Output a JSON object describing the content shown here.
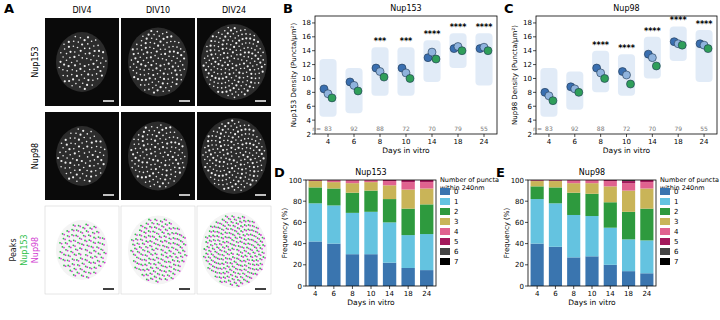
{
  "panels": [
    "A",
    "B",
    "C",
    "D",
    "E"
  ],
  "images": {
    "columns": [
      "DIV4",
      "DIV10",
      "DIV24"
    ],
    "rows": [
      "Nup153",
      "Nup98"
    ],
    "overlay_labels": [
      "Peaks",
      "Nup153",
      "Nup98"
    ],
    "overlay_colors": [
      "#222222",
      "#2fbf4a",
      "#d23fd2"
    ]
  },
  "chart_data": [
    {
      "type": "scatter",
      "title": "Nup153",
      "x_label": "Days in vitro",
      "y_label": "Nup153 Density (Puncta/µm²)",
      "categories": [
        4,
        6,
        8,
        10,
        14,
        18,
        24
      ],
      "ylim": [
        2,
        19
      ],
      "yticks": [
        2,
        4,
        6,
        8,
        10,
        12,
        14,
        16,
        18
      ],
      "grid": false,
      "series": [
        {
          "color": "#3a6fb0",
          "values": [
            8.5,
            9.5,
            11.5,
            11.5,
            13.0,
            14.3,
            14.3
          ]
        },
        {
          "color": "#8fb3dd",
          "values": [
            7.8,
            9.0,
            11.0,
            10.8,
            13.8,
            14.6,
            14.5
          ]
        },
        {
          "color": "#2f9e5a",
          "values": [
            7.2,
            8.2,
            10.2,
            10.0,
            12.8,
            14.0,
            14.0
          ]
        }
      ],
      "ranges": [
        [
          4.5,
          12.8
        ],
        [
          5.0,
          11.5
        ],
        [
          7.5,
          14.5
        ],
        [
          7.5,
          14.5
        ],
        [
          9.5,
          15.5
        ],
        [
          11.5,
          16.5
        ],
        [
          9.0,
          16.5
        ]
      ],
      "n_prefix": "n=",
      "n": [
        83,
        92,
        88,
        72,
        70,
        79,
        55
      ],
      "significance": [
        null,
        null,
        "***",
        "***",
        "****",
        "****",
        "****"
      ]
    },
    {
      "type": "scatter",
      "title": "Nup98",
      "x_label": "Days in vitro",
      "y_label": "Nup98 Density (Puncta/µm²)",
      "categories": [
        4,
        6,
        8,
        10,
        14,
        18,
        24
      ],
      "ylim": [
        2,
        19
      ],
      "yticks": [
        2,
        4,
        6,
        8,
        10,
        12,
        14,
        16,
        18
      ],
      "grid": false,
      "series": [
        {
          "color": "#3a6fb0",
          "values": [
            8.0,
            8.8,
            11.5,
            11.0,
            13.5,
            15.3,
            15.0
          ]
        },
        {
          "color": "#8fb3dd",
          "values": [
            7.5,
            8.5,
            10.8,
            10.5,
            13.0,
            15.0,
            14.8
          ]
        },
        {
          "color": "#2f9e5a",
          "values": [
            6.8,
            8.0,
            10.0,
            9.2,
            11.8,
            14.8,
            14.3
          ]
        }
      ],
      "ranges": [
        [
          4.5,
          11.5
        ],
        [
          5.5,
          11.0
        ],
        [
          8.0,
          14.0
        ],
        [
          7.5,
          13.5
        ],
        [
          10.0,
          16.0
        ],
        [
          12.5,
          17.5
        ],
        [
          9.5,
          17.0
        ]
      ],
      "n_prefix": "n=",
      "n": [
        83,
        92,
        88,
        72,
        70,
        79,
        55
      ],
      "significance": [
        null,
        null,
        "****",
        "****",
        "****",
        "****",
        "****"
      ]
    },
    {
      "type": "bar",
      "stacked": true,
      "title": "Nup153",
      "x_label": "Days in vitro",
      "y_label": "Frequency (%)",
      "categories": [
        "4",
        "6",
        "8",
        "10",
        "14",
        "18",
        "24"
      ],
      "ylim": [
        0,
        100
      ],
      "yticks": [
        0,
        20,
        40,
        60,
        80,
        100
      ],
      "legend": "right",
      "legend_title": [
        "Number of puncta",
        "within 240nm"
      ],
      "series": [
        {
          "name": "0",
          "color": "#3a75af",
          "values": [
            42,
            40,
            30,
            30,
            22,
            17,
            15
          ]
        },
        {
          "name": "1",
          "color": "#64c3e0",
          "values": [
            36,
            36,
            39,
            40,
            38,
            31,
            34
          ]
        },
        {
          "name": "2",
          "color": "#2e9a3e",
          "values": [
            15,
            16,
            19,
            20,
            22,
            25,
            28
          ]
        },
        {
          "name": "3",
          "color": "#c9b458",
          "values": [
            6,
            6,
            9,
            8,
            13,
            18,
            15
          ]
        },
        {
          "name": "4",
          "color": "#e0628f",
          "values": [
            1,
            2,
            3,
            2,
            4,
            7,
            6
          ]
        },
        {
          "name": "5",
          "color": "#a3195b",
          "values": [
            0,
            0,
            0,
            0,
            1,
            2,
            2
          ]
        },
        {
          "name": "6",
          "color": "#444444",
          "values": [
            0,
            0,
            0,
            0,
            0,
            0,
            0
          ]
        },
        {
          "name": "7",
          "color": "#000000",
          "values": [
            0,
            0,
            0,
            0,
            0,
            0,
            0
          ]
        }
      ]
    },
    {
      "type": "bar",
      "stacked": true,
      "title": "Nup98",
      "x_label": "Days in vitro",
      "y_label": "Frequency (%)",
      "categories": [
        "4",
        "6",
        "8",
        "10",
        "14",
        "18",
        "24"
      ],
      "ylim": [
        0,
        100
      ],
      "yticks": [
        0,
        20,
        40,
        60,
        80,
        100
      ],
      "legend": "right",
      "legend_title": [
        "Number of puncta",
        "within 240nm"
      ],
      "series": [
        {
          "name": "0",
          "color": "#3a75af",
          "values": [
            40,
            37,
            27,
            28,
            20,
            14,
            12
          ]
        },
        {
          "name": "1",
          "color": "#64c3e0",
          "values": [
            42,
            41,
            40,
            38,
            35,
            30,
            31
          ]
        },
        {
          "name": "2",
          "color": "#2e9a3e",
          "values": [
            12,
            15,
            21,
            21,
            24,
            26,
            30
          ]
        },
        {
          "name": "3",
          "color": "#c9b458",
          "values": [
            5,
            6,
            9,
            10,
            15,
            20,
            19
          ]
        },
        {
          "name": "4",
          "color": "#e0628f",
          "values": [
            1,
            1,
            3,
            3,
            5,
            7,
            6
          ]
        },
        {
          "name": "5",
          "color": "#a3195b",
          "values": [
            0,
            0,
            0,
            0,
            1,
            2,
            2
          ]
        },
        {
          "name": "6",
          "color": "#444444",
          "values": [
            0,
            0,
            0,
            0,
            0,
            1,
            0
          ]
        },
        {
          "name": "7",
          "color": "#000000",
          "values": [
            0,
            0,
            0,
            0,
            0,
            0,
            0
          ]
        }
      ]
    }
  ]
}
